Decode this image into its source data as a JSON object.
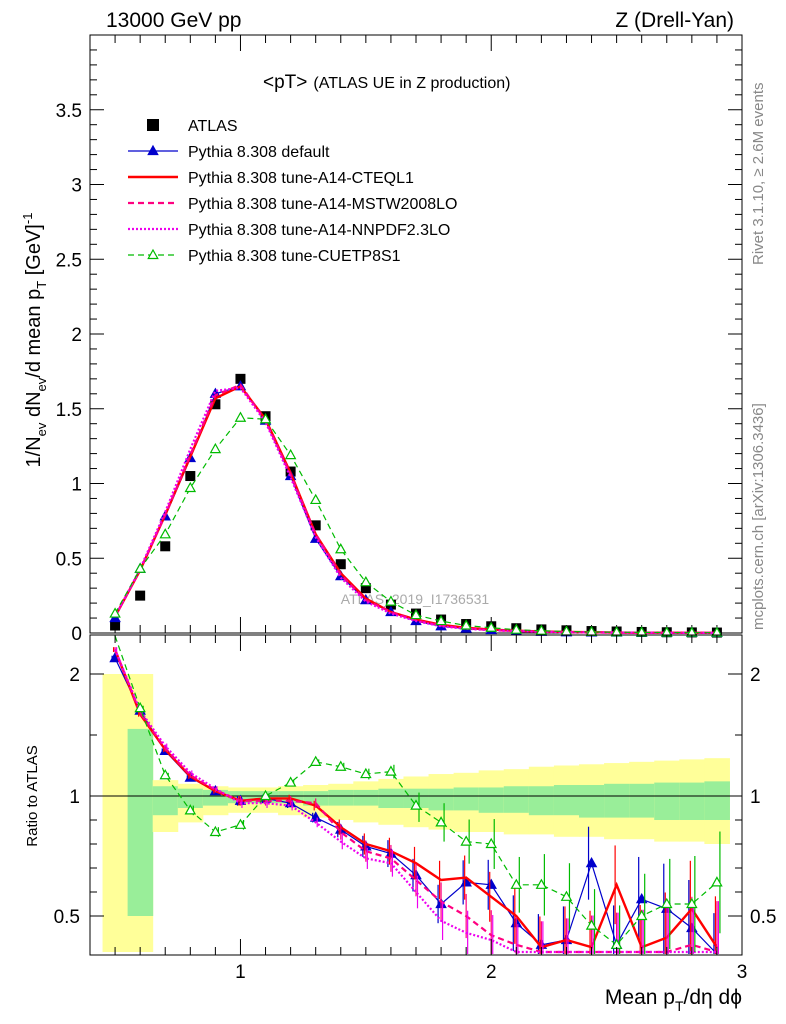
{
  "header": {
    "left": "13000 GeV pp",
    "right": "Z (Drell-Yan)"
  },
  "side_text": {
    "rivet": "Rivet 3.1.10, ≥ 2.6M events",
    "mcplots": "mcplots.cern.ch [arXiv:1306.3436]"
  },
  "chart_data": [
    {
      "type": "scatter",
      "panel": "main",
      "title": "<pT>",
      "subtitle": "(ATLAS UE in Z production)",
      "watermark": "ATLAS_2019_I1736531",
      "ylabel": "1/N_ev dN_ev/d mean p_T [GeV]^-1",
      "xlim": [
        0.4,
        3.0
      ],
      "ylim": [
        0,
        4.0
      ],
      "yticks": [
        "0",
        "0.5",
        "1",
        "1.5",
        "2",
        "2.5",
        "3",
        "3.5"
      ],
      "legend_position": "top-left",
      "x": [
        0.5,
        0.6,
        0.7,
        0.8,
        0.9,
        1.0,
        1.1,
        1.2,
        1.3,
        1.4,
        1.5,
        1.6,
        1.7,
        1.8,
        1.9,
        2.0,
        2.1,
        2.2,
        2.3,
        2.4,
        2.5,
        2.6,
        2.7,
        2.8,
        2.9
      ],
      "series": [
        {
          "name": "ATLAS",
          "color": "#000000",
          "style": "data",
          "values": [
            0.05,
            0.25,
            0.58,
            1.05,
            1.53,
            1.7,
            1.45,
            1.08,
            0.72,
            0.46,
            0.3,
            0.19,
            0.13,
            0.09,
            0.06,
            0.045,
            0.032,
            0.024,
            0.018,
            0.013,
            0.01,
            0.007,
            0.005,
            0.004,
            0.003
          ]
        },
        {
          "name": "Pythia 8.308 default",
          "color": "#0000cc",
          "style": "blue-tri",
          "values": [
            0.1,
            0.43,
            0.78,
            1.17,
            1.6,
            1.65,
            1.42,
            1.05,
            0.63,
            0.38,
            0.22,
            0.14,
            0.08,
            0.045,
            0.03,
            0.02,
            0.012,
            0.008,
            0.005,
            0.004,
            0.003,
            0.002,
            0.002,
            0.001,
            0.001
          ]
        },
        {
          "name": "Pythia 8.308 tune-A14-CTEQL1",
          "color": "#ff0000",
          "style": "red-solid",
          "values": [
            0.11,
            0.42,
            0.79,
            1.18,
            1.57,
            1.65,
            1.43,
            1.07,
            0.66,
            0.4,
            0.23,
            0.14,
            0.09,
            0.055,
            0.035,
            0.023,
            0.015,
            0.01,
            0.007,
            0.005,
            0.003,
            0.002,
            0.002,
            0.001,
            0.001
          ]
        },
        {
          "name": "Pythia 8.308 tune-A14-MSTW2008LO",
          "color": "#ff0080",
          "style": "pink-dash",
          "values": [
            0.11,
            0.42,
            0.79,
            1.19,
            1.59,
            1.66,
            1.42,
            1.06,
            0.66,
            0.39,
            0.22,
            0.14,
            0.085,
            0.05,
            0.03,
            0.02,
            0.013,
            0.009,
            0.006,
            0.004,
            0.003,
            0.002,
            0.001,
            0.001,
            0.001
          ]
        },
        {
          "name": "Pythia 8.308 tune-A14-NNPDF2.3LO",
          "color": "#ee00ee",
          "style": "magenta-dot",
          "values": [
            0.11,
            0.43,
            0.81,
            1.23,
            1.62,
            1.64,
            1.41,
            1.04,
            0.64,
            0.37,
            0.21,
            0.13,
            0.08,
            0.045,
            0.028,
            0.018,
            0.012,
            0.008,
            0.005,
            0.004,
            0.003,
            0.002,
            0.001,
            0.001,
            0.001
          ]
        },
        {
          "name": "Pythia 8.308 tune-CUETP8S1",
          "color": "#00bb00",
          "style": "green-dash-tri",
          "values": [
            0.13,
            0.43,
            0.66,
            0.97,
            1.23,
            1.44,
            1.43,
            1.19,
            0.89,
            0.56,
            0.34,
            0.21,
            0.12,
            0.08,
            0.05,
            0.035,
            0.022,
            0.015,
            0.01,
            0.007,
            0.005,
            0.004,
            0.003,
            0.002,
            0.002
          ]
        }
      ]
    },
    {
      "type": "line",
      "panel": "ratio",
      "ylabel": "Ratio to ATLAS",
      "xlabel": "Mean p_T/dη dϕ",
      "xlim": [
        0.4,
        3.0
      ],
      "ylim": [
        0.35,
        2.3
      ],
      "xticks": [
        "1",
        "2",
        "3"
      ],
      "yticks": [
        "0.5",
        "1",
        "2"
      ],
      "x": [
        0.5,
        0.6,
        0.7,
        0.8,
        0.9,
        1.0,
        1.1,
        1.2,
        1.3,
        1.4,
        1.5,
        1.6,
        1.7,
        1.8,
        1.9,
        2.0,
        2.1,
        2.2,
        2.3,
        2.4,
        2.5,
        2.6,
        2.7,
        2.8,
        2.9
      ],
      "band_inner": [
        0.5,
        1.55,
        1.08,
        1.06,
        1.05,
        1.04,
        1.04,
        1.04,
        1.04,
        1.05,
        1.05,
        1.06,
        1.06,
        1.06,
        1.07,
        1.07,
        1.08,
        1.08,
        1.09,
        1.09,
        1.1,
        1.1,
        1.11,
        1.11,
        1.12
      ],
      "band_inner_low": [
        0.5,
        0.5,
        0.92,
        0.95,
        0.96,
        0.97,
        0.97,
        0.97,
        0.96,
        0.96,
        0.96,
        0.95,
        0.95,
        0.94,
        0.94,
        0.93,
        0.93,
        0.92,
        0.92,
        0.91,
        0.91,
        0.91,
        0.9,
        0.9,
        0.9
      ],
      "band_outer": [
        2.0,
        2.0,
        1.13,
        1.1,
        1.08,
        1.07,
        1.07,
        1.08,
        1.09,
        1.1,
        1.12,
        1.14,
        1.16,
        1.18,
        1.19,
        1.21,
        1.22,
        1.24,
        1.25,
        1.26,
        1.27,
        1.28,
        1.29,
        1.3,
        1.31
      ],
      "band_outer_low": [
        0.35,
        0.35,
        0.85,
        0.89,
        0.92,
        0.93,
        0.93,
        0.92,
        0.91,
        0.9,
        0.89,
        0.88,
        0.87,
        0.86,
        0.85,
        0.85,
        0.84,
        0.84,
        0.83,
        0.83,
        0.82,
        0.82,
        0.81,
        0.81,
        0.8
      ],
      "series": [
        {
          "name": "Pythia 8.308 default",
          "color": "#0000cc",
          "values": [
            2.13,
            1.7,
            1.37,
            1.15,
            1.04,
            0.98,
            0.99,
            0.97,
            0.91,
            0.86,
            0.79,
            0.76,
            0.67,
            0.55,
            0.64,
            0.63,
            0.47,
            0.38,
            0.4,
            0.72,
            0.38,
            0.57,
            0.53,
            0.45,
            0.3
          ]
        },
        {
          "name": "Pythia 8.308 tune-A14-CTEQL1",
          "color": "#ff0000",
          "values": [
            2.2,
            1.67,
            1.38,
            1.16,
            1.04,
            0.98,
            0.99,
            0.99,
            0.96,
            0.87,
            0.8,
            0.77,
            0.72,
            0.65,
            0.66,
            0.58,
            0.5,
            0.37,
            0.4,
            0.37,
            0.63,
            0.37,
            0.41,
            0.53,
            0.37
          ]
        },
        {
          "name": "Pythia 8.308 tune-A14-MSTW2008LO",
          "color": "#ff0080",
          "values": [
            2.2,
            1.68,
            1.39,
            1.17,
            1.05,
            0.98,
            0.98,
            0.98,
            0.97,
            0.85,
            0.77,
            0.74,
            0.65,
            0.56,
            0.5,
            0.42,
            0.38,
            0.35,
            0.35,
            0.35,
            0.35,
            0.35,
            0.35,
            0.38,
            0.35
          ]
        },
        {
          "name": "Pythia 8.308 tune-A14-NNPDF2.3LO",
          "color": "#ee00ee",
          "values": [
            2.2,
            1.7,
            1.41,
            1.19,
            1.06,
            0.97,
            0.97,
            0.96,
            0.89,
            0.81,
            0.74,
            0.72,
            0.6,
            0.48,
            0.43,
            0.4,
            0.35,
            0.35,
            0.35,
            0.35,
            0.35,
            0.35,
            0.35,
            0.35,
            0.35
          ]
        },
        {
          "name": "Pythia 8.308 tune-CUETP8S1",
          "color": "#00bb00",
          "values": [
            2.5,
            1.72,
            1.17,
            0.94,
            0.85,
            0.88,
            1.0,
            1.11,
            1.28,
            1.24,
            1.18,
            1.2,
            0.96,
            0.89,
            0.81,
            0.8,
            0.63,
            0.63,
            0.58,
            0.46,
            0.38,
            0.5,
            0.55,
            0.55,
            0.64
          ]
        }
      ]
    }
  ]
}
